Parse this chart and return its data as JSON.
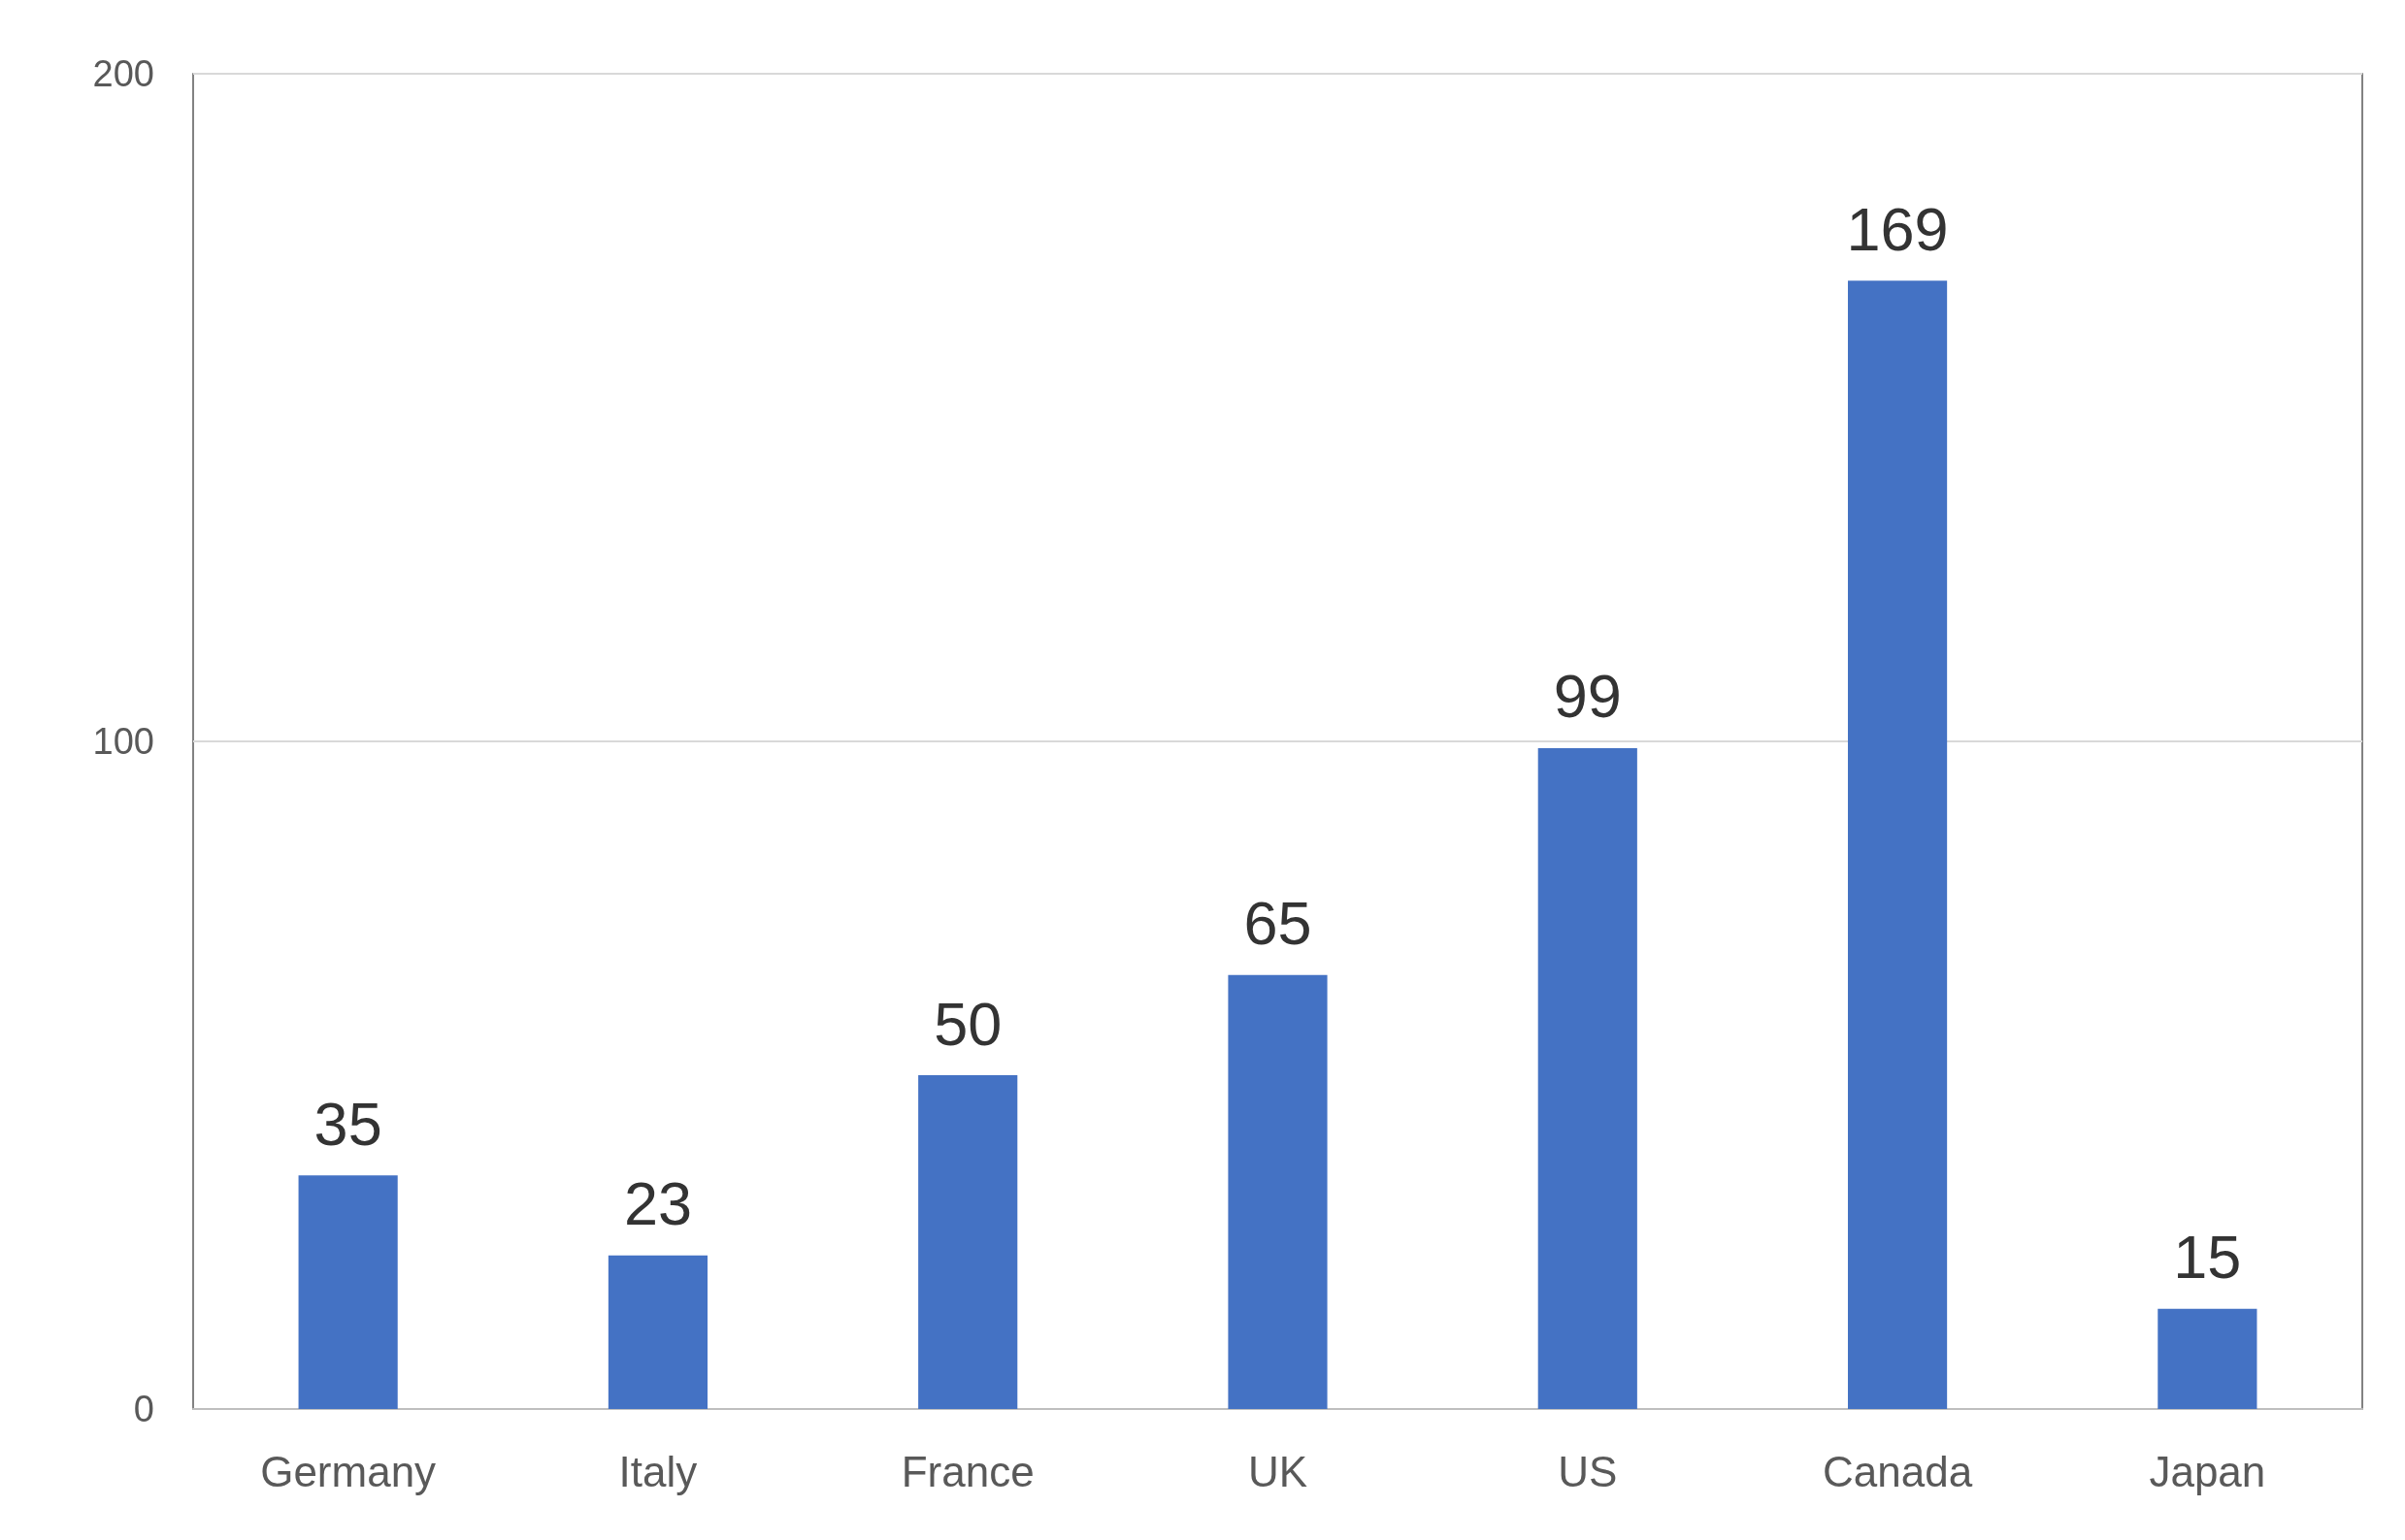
{
  "chart_data": {
    "type": "bar",
    "categories": [
      "Germany",
      "Italy",
      "France",
      "UK",
      "US",
      "Canada",
      "Japan"
    ],
    "values": [
      35,
      23,
      50,
      65,
      99,
      169,
      15
    ],
    "color": "#4472c4",
    "ylim": [
      0,
      200
    ],
    "yticks": [
      0,
      100,
      200
    ],
    "grid": "y",
    "data_labels": true
  }
}
